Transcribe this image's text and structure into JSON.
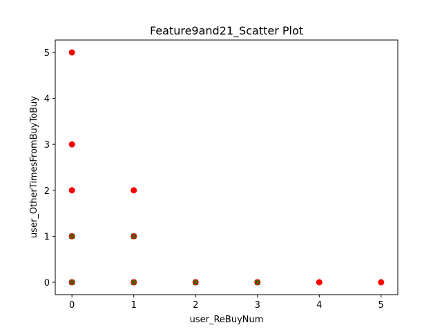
{
  "chart_data": {
    "type": "scatter",
    "title": "Feature9and21_Scatter Plot",
    "xlabel": "user_ReBuyNum",
    "ylabel": "user_OtherTimesFromBuyToBuy",
    "xlim": [
      -0.27,
      5.27
    ],
    "ylim": [
      -0.27,
      5.27
    ],
    "xticks": [
      0,
      1,
      2,
      3,
      4,
      5
    ],
    "yticks": [
      0,
      1,
      2,
      3,
      4,
      5
    ],
    "grid": false,
    "series": [
      {
        "color": "#ff0000",
        "marker": "circle",
        "points": [
          [
            0,
            0
          ],
          [
            0,
            1
          ],
          [
            0,
            2
          ],
          [
            0,
            3
          ],
          [
            0,
            5
          ],
          [
            1,
            0
          ],
          [
            1,
            1
          ],
          [
            1,
            2
          ],
          [
            2,
            0
          ],
          [
            3,
            0
          ],
          [
            4,
            0
          ],
          [
            5,
            0
          ]
        ]
      },
      {
        "color": "#008000",
        "marker": "x",
        "points": [
          [
            0,
            0
          ],
          [
            0,
            1
          ],
          [
            1,
            0
          ],
          [
            1,
            1
          ],
          [
            2,
            0
          ],
          [
            3,
            0
          ]
        ]
      }
    ]
  }
}
